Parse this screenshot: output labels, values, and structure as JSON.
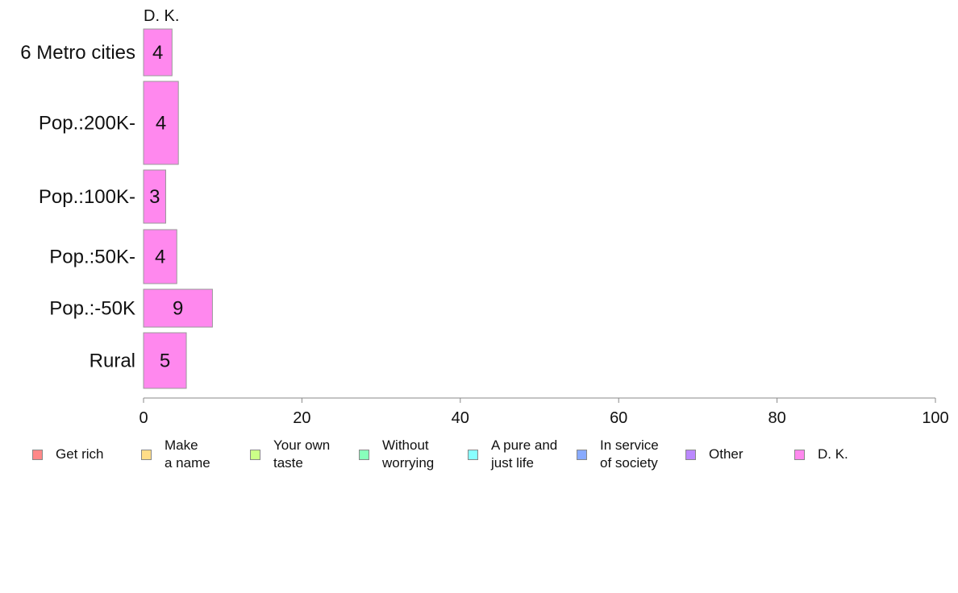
{
  "chart_data": {
    "type": "bar",
    "orientation": "horizontal",
    "panel_title": "D. K.",
    "categories": [
      "6 Metro cities",
      "Pop.:200K-",
      "Pop.:100K-",
      "Pop.:50K-",
      "Pop.:-50K",
      "Rural"
    ],
    "series": [
      {
        "name": "D. K.",
        "color": "#ff88ee",
        "values": [
          3.6,
          4.4,
          2.8,
          4.2,
          8.7,
          5.4
        ],
        "labels": [
          "4",
          "4",
          "3",
          "4",
          "9",
          "5"
        ]
      }
    ],
    "xlim": [
      0,
      100
    ],
    "xticks": [
      "0",
      "20",
      "40",
      "60",
      "80",
      "100"
    ],
    "grid": false,
    "legend_position": "bottom",
    "legend": [
      {
        "label": "Get rich",
        "color": "#ff8888"
      },
      {
        "label": "Make\na name",
        "color": "#ffdd88"
      },
      {
        "label": "Your own\ntaste",
        "color": "#ccff88"
      },
      {
        "label": "Without\nworrying",
        "color": "#88ffbb"
      },
      {
        "label": "A pure and\njust life",
        "color": "#88ffff"
      },
      {
        "label": "In service\nof society",
        "color": "#88aaff"
      },
      {
        "label": "Other",
        "color": "#bb88ff"
      },
      {
        "label": "D. K.",
        "color": "#ff88ee"
      }
    ]
  }
}
